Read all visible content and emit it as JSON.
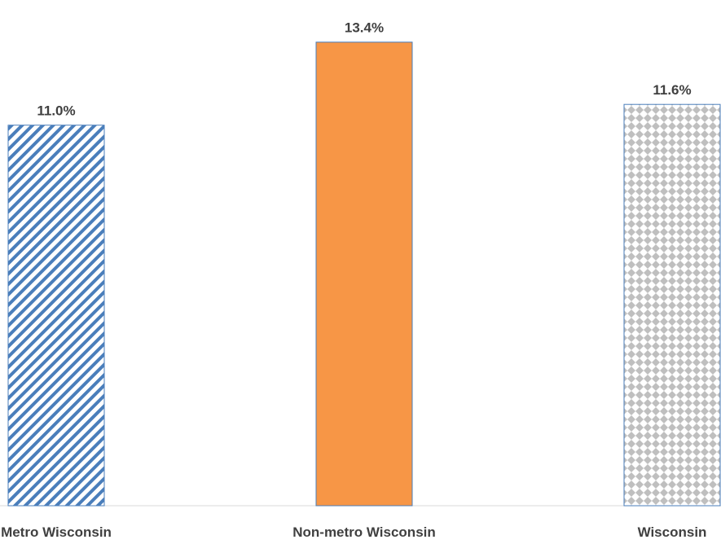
{
  "chart_data": {
    "type": "bar",
    "categories": [
      "Metro Wisconsin",
      "Non-metro Wisconsin",
      "Wisconsin"
    ],
    "values": [
      11.0,
      13.4,
      11.6
    ],
    "data_labels": [
      "11.0%",
      "13.4%",
      "11.6%"
    ],
    "unit": "%",
    "ylim": [
      0,
      14.1
    ],
    "title": "",
    "xlabel": "",
    "ylabel": "",
    "grid": false,
    "legend": "none",
    "bar_styles": [
      {
        "fill": "diagonal-stripes",
        "color": "#4a7ebb"
      },
      {
        "fill": "solid",
        "color": "#f79646"
      },
      {
        "fill": "diamond-pattern",
        "color": "#bfbfbf"
      }
    ],
    "outline_color": "#4a7ebb"
  }
}
